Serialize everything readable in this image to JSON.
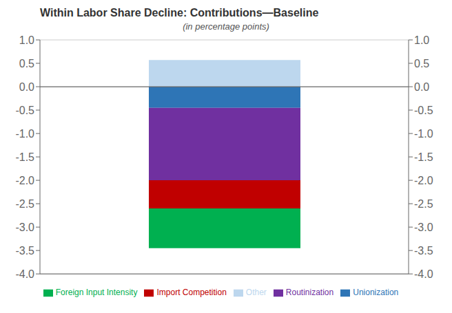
{
  "chart_data": {
    "type": "bar",
    "title": "Within Labor Share Decline: Contributions—Baseline",
    "subtitle": "(in percentage points)",
    "categories": [
      null
    ],
    "series": [
      {
        "name": "Unionization",
        "color": "#2E75B6",
        "values": [
          -0.45
        ]
      },
      {
        "name": "Routinization",
        "color": "#7030A0",
        "values": [
          -1.55
        ]
      },
      {
        "name": "Import Competition",
        "color": "#C00000",
        "values": [
          -0.6
        ]
      },
      {
        "name": "Foreign Input Intensity",
        "color": "#00B050",
        "values": [
          -0.85
        ]
      },
      {
        "name": "Other",
        "color": "#BDD7EE",
        "values": [
          0.57
        ]
      }
    ],
    "stacked": true,
    "ylim": [
      -4.0,
      1.0
    ],
    "yticks": [
      {
        "value": -4.0,
        "label": "-4.0"
      },
      -3.5,
      {
        "value": -3.0,
        "label": "-3.0"
      },
      -2.5,
      {
        "value": -2.0,
        "label": "-2.0"
      },
      -1.5,
      {
        "value": -1.0,
        "label": "-1.0"
      },
      -0.5,
      {
        "value": 0.0,
        "label": "0.0"
      },
      0.5,
      {
        "value": 1.0,
        "label": "1.0"
      }
    ],
    "y2lim": [
      -4.0,
      1.0
    ],
    "y2ticks": [
      {
        "value": -4.0,
        "label": "-4.0"
      },
      -3.5,
      {
        "value": -3.0,
        "label": "-3.0"
      },
      -2.5,
      {
        "value": -2.0,
        "label": "-2.0"
      },
      -1.5,
      {
        "value": -1.0,
        "label": "-1.0"
      },
      -0.5,
      {
        "value": 0.0,
        "label": "0.0"
      },
      0.5,
      {
        "value": 1.0,
        "label": "1.0"
      }
    ],
    "grid": true,
    "legend": "bottom",
    "tick_labels": "y"
  }
}
